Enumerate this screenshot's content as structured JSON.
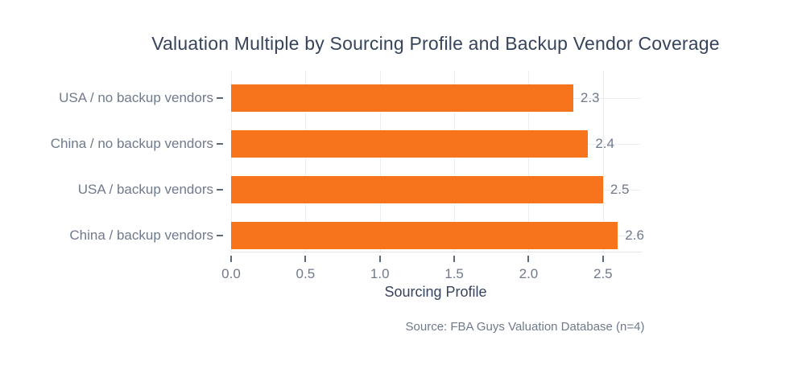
{
  "chart_data": {
    "type": "bar",
    "orientation": "horizontal",
    "title": "Valuation Multiple by Sourcing Profile and Backup Vendor Coverage",
    "categories": [
      "USA / no backup vendors",
      "China / no backup vendors",
      "USA / backup vendors",
      "China / backup vendors"
    ],
    "values": [
      2.3,
      2.4,
      2.5,
      2.6
    ],
    "value_labels": [
      "2.3",
      "2.4",
      "2.5",
      "2.6"
    ],
    "xlabel": "Sourcing Profile",
    "ylabel": "",
    "xlim": [
      0,
      2.75
    ],
    "x_ticks": [
      0.0,
      0.5,
      1.0,
      1.5,
      2.0,
      2.5
    ],
    "x_tick_labels": [
      "0.0",
      "0.5",
      "1.0",
      "1.5",
      "2.0",
      "2.5"
    ],
    "grid": true,
    "legend": false,
    "source_note": "Source: FBA Guys Valuation Database (n=4)",
    "colors": {
      "bar": "#F7741C",
      "title": "#36445C",
      "tick_label": "#6F7A8B",
      "value_label": "#6F7A8B",
      "gridline": "#ECEDF3",
      "axis_line": "#E3E6EC",
      "tick_mark": "#5E6978",
      "background": "#FFFFFF"
    }
  }
}
